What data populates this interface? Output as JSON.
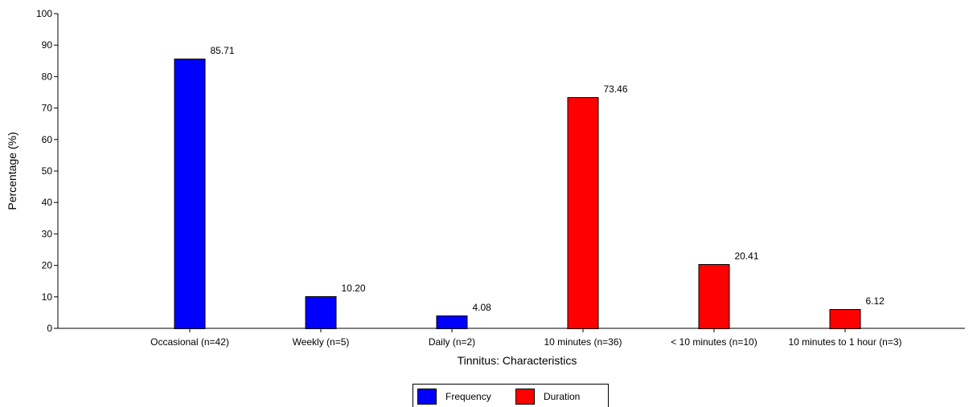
{
  "chart_data": {
    "type": "bar",
    "xlabel": "Tinnitus: Characteristics",
    "ylabel": "Percentage (%)",
    "ylim": [
      0,
      100
    ],
    "yticks": [
      0,
      10,
      20,
      30,
      40,
      50,
      60,
      70,
      80,
      90,
      100
    ],
    "categories": [
      "Occasional (n=42)",
      "Weekly (n=5)",
      "Daily (n=2)",
      "10 minutes (n=36)",
      "< 10 minutes (n=10)",
      "10 minutes to 1 hour (n=3)"
    ],
    "series": [
      {
        "name": "Frequency",
        "color": "#0000ff",
        "values": [
          85.71,
          10.2,
          4.08,
          null,
          null,
          null
        ]
      },
      {
        "name": "Duration",
        "color": "#ff0000",
        "values": [
          null,
          null,
          null,
          73.46,
          20.41,
          6.12
        ]
      }
    ],
    "value_labels": [
      "85.71",
      "10.20",
      "4.08",
      "73.46",
      "20.41",
      "6.12"
    ],
    "grid": false,
    "legend_position": "bottom-center"
  }
}
